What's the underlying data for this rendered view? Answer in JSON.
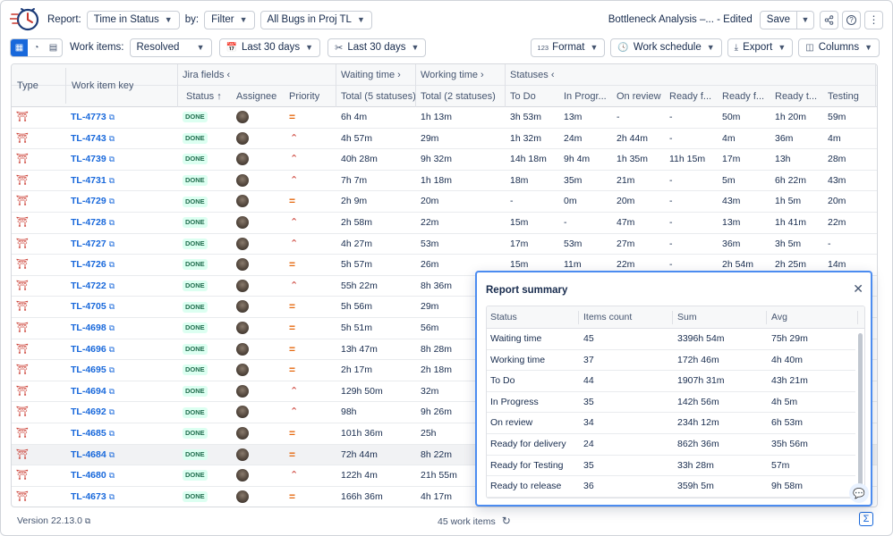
{
  "toolbar": {
    "report_label": "Report:",
    "report_type": "Time in Status",
    "by_label": "by:",
    "filter_label": "Filter",
    "scope_label": "All Bugs in Proj TL",
    "report_name": "Bottleneck Analysis –... - Edited",
    "save_label": "Save"
  },
  "filters": {
    "work_items_label": "Work items:",
    "work_items_value": "Resolved",
    "range1": "Last 30 days",
    "range2": "Last 30 days",
    "format_label": "Format",
    "format_prefix": "123",
    "schedule_label": "Work schedule",
    "export_label": "Export",
    "columns_label": "Columns"
  },
  "table": {
    "group_headers": {
      "jira": "Jira fields",
      "waiting": "Waiting time",
      "working": "Working time",
      "statuses": "Statuses"
    },
    "headers": {
      "type": "Type",
      "key": "Work item key",
      "status": "Status",
      "assignee": "Assignee",
      "priority": "Priority",
      "waiting_total": "Total (5 statuses)",
      "working_total": "Total (2 statuses)",
      "todo": "To Do",
      "inprogress": "In Progr...",
      "onreview": "On review",
      "readyf1": "Ready f...",
      "readyf2": "Ready f...",
      "readyt": "Ready t...",
      "testing": "Testing"
    },
    "done_label": "DONE",
    "rows": [
      {
        "key": "TL-4773",
        "prio": "medium",
        "waiting": "6h 4m",
        "working": "1h 13m",
        "todo": "3h 53m",
        "inprog": "13m",
        "review": "-",
        "rfd": "-",
        "rff": "50m",
        "rtr": "1h 20m",
        "test": "59m"
      },
      {
        "key": "TL-4743",
        "prio": "high",
        "waiting": "4h 57m",
        "working": "29m",
        "todo": "1h 32m",
        "inprog": "24m",
        "review": "2h 44m",
        "rfd": "-",
        "rff": "4m",
        "rtr": "36m",
        "test": "4m"
      },
      {
        "key": "TL-4739",
        "prio": "high",
        "waiting": "40h 28m",
        "working": "9h 32m",
        "todo": "14h 18m",
        "inprog": "9h 4m",
        "review": "1h 35m",
        "rfd": "11h 15m",
        "rff": "17m",
        "rtr": "13h",
        "test": "28m"
      },
      {
        "key": "TL-4731",
        "prio": "high",
        "waiting": "7h 7m",
        "working": "1h 18m",
        "todo": "18m",
        "inprog": "35m",
        "review": "21m",
        "rfd": "-",
        "rff": "5m",
        "rtr": "6h 22m",
        "test": "43m"
      },
      {
        "key": "TL-4729",
        "prio": "medium",
        "waiting": "2h 9m",
        "working": "20m",
        "todo": "-",
        "inprog": "0m",
        "review": "20m",
        "rfd": "-",
        "rff": "43m",
        "rtr": "1h 5m",
        "test": "20m"
      },
      {
        "key": "TL-4728",
        "prio": "high",
        "waiting": "2h 58m",
        "working": "22m",
        "todo": "15m",
        "inprog": "-",
        "review": "47m",
        "rfd": "-",
        "rff": "13m",
        "rtr": "1h 41m",
        "test": "22m"
      },
      {
        "key": "TL-4727",
        "prio": "high",
        "waiting": "4h 27m",
        "working": "53m",
        "todo": "17m",
        "inprog": "53m",
        "review": "27m",
        "rfd": "-",
        "rff": "36m",
        "rtr": "3h 5m",
        "test": "-"
      },
      {
        "key": "TL-4726",
        "prio": "medium",
        "waiting": "5h 57m",
        "working": "26m",
        "todo": "15m",
        "inprog": "11m",
        "review": "22m",
        "rfd": "-",
        "rff": "2h 54m",
        "rtr": "2h 25m",
        "test": "14m"
      },
      {
        "key": "TL-4722",
        "prio": "high",
        "waiting": "55h 22m",
        "working": "8h 36m"
      },
      {
        "key": "TL-4705",
        "prio": "medium",
        "waiting": "5h 56m",
        "working": "29m"
      },
      {
        "key": "TL-4698",
        "prio": "medium",
        "waiting": "5h 51m",
        "working": "56m"
      },
      {
        "key": "TL-4696",
        "prio": "medium",
        "waiting": "13h 47m",
        "working": "8h 28m"
      },
      {
        "key": "TL-4695",
        "prio": "medium",
        "waiting": "2h 17m",
        "working": "2h 18m"
      },
      {
        "key": "TL-4694",
        "prio": "high",
        "waiting": "129h 50m",
        "working": "32m"
      },
      {
        "key": "TL-4692",
        "prio": "high",
        "waiting": "98h",
        "working": "9h 26m"
      },
      {
        "key": "TL-4685",
        "prio": "medium",
        "waiting": "101h 36m",
        "working": "25h"
      },
      {
        "key": "TL-4684",
        "prio": "medium",
        "waiting": "72h 44m",
        "working": "8h 22m"
      },
      {
        "key": "TL-4680",
        "prio": "high",
        "waiting": "122h 4m",
        "working": "21h 55m"
      },
      {
        "key": "TL-4673",
        "prio": "medium",
        "waiting": "166h 36m",
        "working": "4h 17m"
      }
    ]
  },
  "footer": {
    "version": "Version 22.13.0",
    "count": "45 work items"
  },
  "summary": {
    "title": "Report summary",
    "headers": [
      "Status",
      "Items count",
      "Sum",
      "Avg"
    ],
    "rows": [
      [
        "Waiting time",
        "45",
        "3396h 54m",
        "75h 29m"
      ],
      [
        "Working time",
        "37",
        "172h 46m",
        "4h 40m"
      ],
      [
        "To Do",
        "44",
        "1907h 31m",
        "43h 21m"
      ],
      [
        "In Progress",
        "35",
        "142h 56m",
        "4h 5m"
      ],
      [
        "On review",
        "34",
        "234h 12m",
        "6h 53m"
      ],
      [
        "Ready for delivery",
        "24",
        "862h 36m",
        "35h 56m"
      ],
      [
        "Ready for Testing",
        "35",
        "33h 28m",
        "57m"
      ],
      [
        "Ready to release",
        "36",
        "359h 5m",
        "9h 58m"
      ]
    ]
  },
  "colors": {
    "accent": "#1868db",
    "done_bg": "#dcfff1",
    "done_text": "#216e4e",
    "priority_medium": "#e56910",
    "priority_high": "#c9372c",
    "bug": "#c9372c"
  },
  "icons": {
    "type": "bug-icon",
    "medium_priority": "priority-medium-icon",
    "high_priority": "priority-high-icon"
  }
}
